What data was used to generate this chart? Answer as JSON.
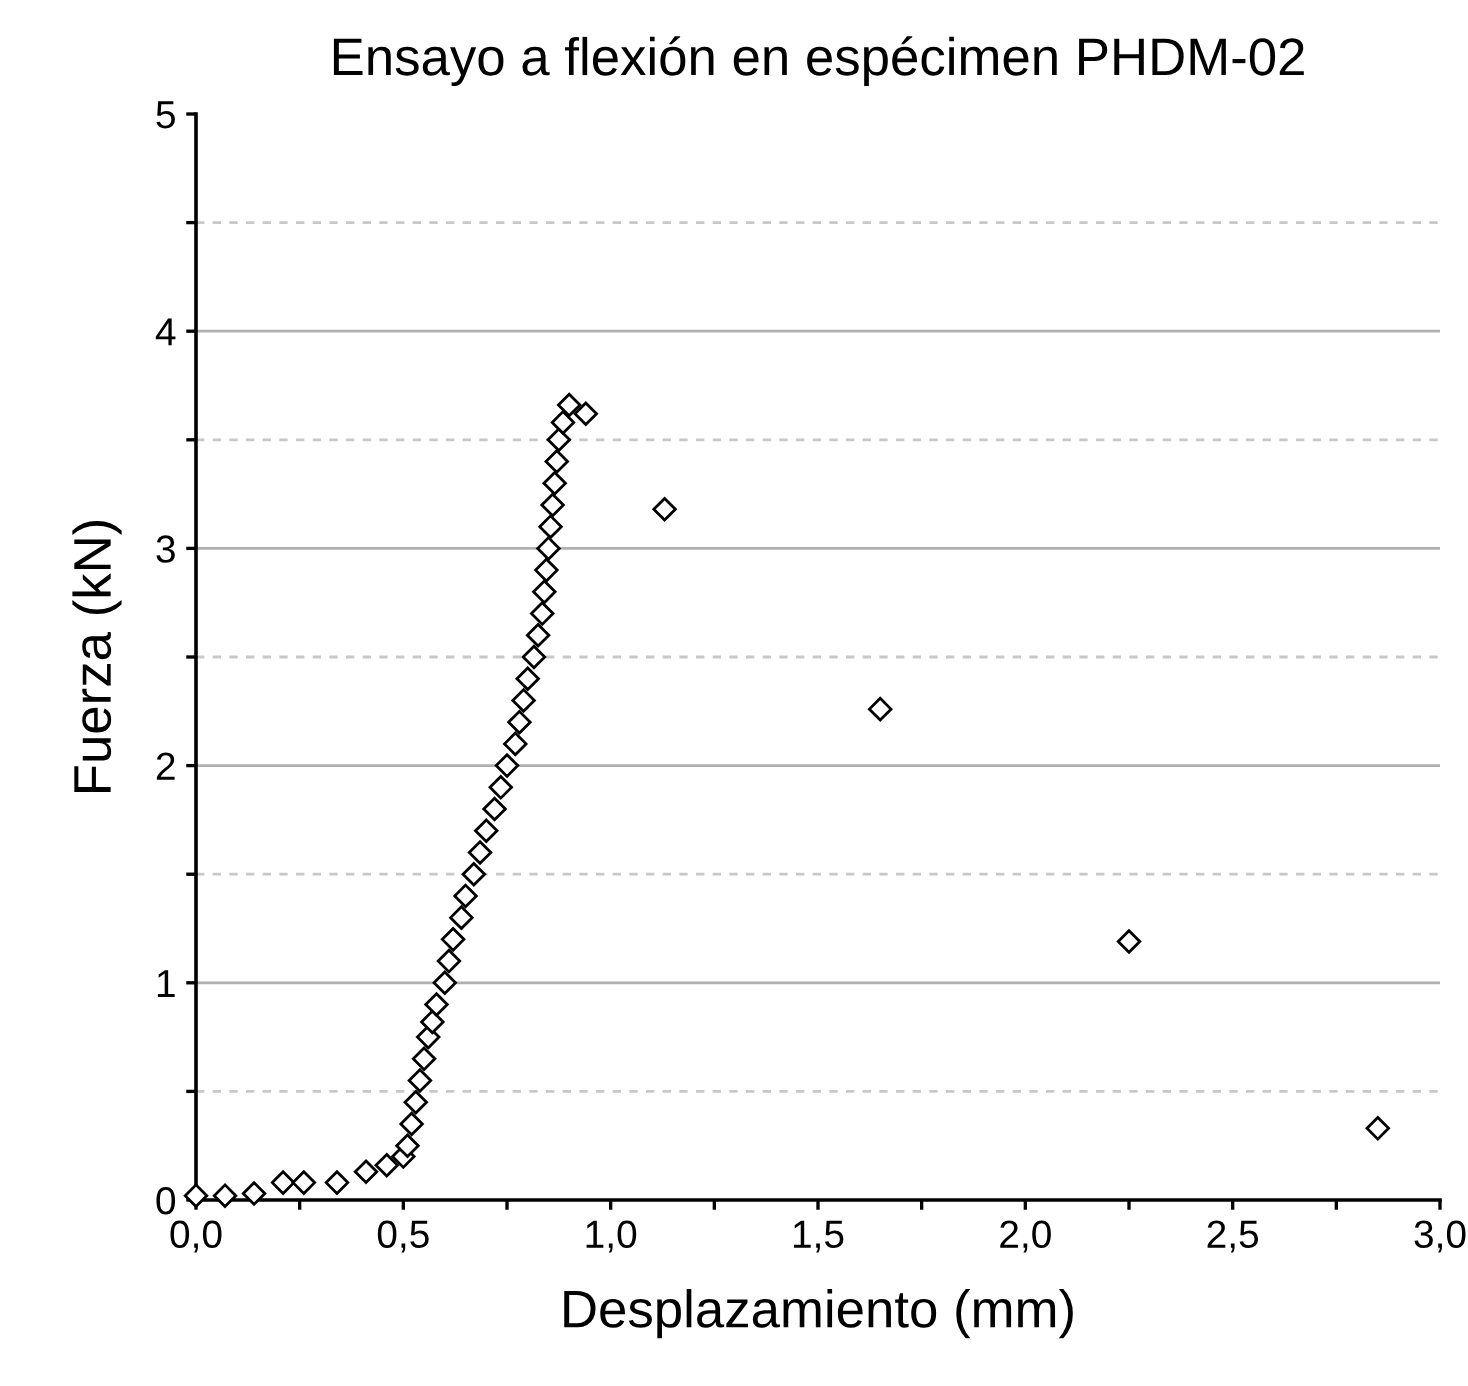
{
  "chart_data": {
    "type": "scatter",
    "title": "Ensayo a flexión en espécimen PHDM-02",
    "xlabel": "Desplazamiento (mm)",
    "ylabel": "Fuerza (kN)",
    "x": [
      0.0,
      0.07,
      0.14,
      0.21,
      0.26,
      0.34,
      0.41,
      0.46,
      0.5,
      0.51,
      0.52,
      0.53,
      0.54,
      0.55,
      0.56,
      0.57,
      0.58,
      0.6,
      0.61,
      0.62,
      0.64,
      0.65,
      0.67,
      0.685,
      0.7,
      0.72,
      0.735,
      0.75,
      0.77,
      0.78,
      0.79,
      0.8,
      0.815,
      0.825,
      0.835,
      0.84,
      0.845,
      0.85,
      0.855,
      0.86,
      0.865,
      0.87,
      0.875,
      0.885,
      0.9,
      0.94,
      1.13,
      1.65,
      2.25,
      2.85
    ],
    "values": [
      0.02,
      0.02,
      0.03,
      0.08,
      0.08,
      0.08,
      0.13,
      0.16,
      0.2,
      0.25,
      0.35,
      0.45,
      0.55,
      0.65,
      0.75,
      0.82,
      0.9,
      1.0,
      1.1,
      1.2,
      1.3,
      1.4,
      1.5,
      1.6,
      1.7,
      1.8,
      1.9,
      2.0,
      2.1,
      2.2,
      2.3,
      2.4,
      2.5,
      2.6,
      2.7,
      2.8,
      2.9,
      3.0,
      3.1,
      3.2,
      3.3,
      3.4,
      3.5,
      3.58,
      3.66,
      3.62,
      3.18,
      2.26,
      1.19,
      0.33
    ],
    "color": "#000000",
    "marker": "diamond",
    "xlim": [
      0,
      3.0
    ],
    "ylim": [
      0,
      5
    ],
    "xticks": [
      {
        "value": 0,
        "label": "0,0"
      },
      {
        "value": 0.25,
        "label": null
      },
      {
        "value": 0.5,
        "label": "0,5"
      },
      {
        "value": 0.75,
        "label": null
      },
      {
        "value": 1.0,
        "label": "1,0"
      },
      {
        "value": 1.25,
        "label": null
      },
      {
        "value": 1.5,
        "label": "1,5"
      },
      {
        "value": 1.75,
        "label": null
      },
      {
        "value": 2.0,
        "label": "2,0"
      },
      {
        "value": 2.25,
        "label": null
      },
      {
        "value": 2.5,
        "label": "2,5"
      },
      {
        "value": 2.75,
        "label": null
      },
      {
        "value": 3.0,
        "label": "3,0"
      }
    ],
    "yticks": [
      0,
      {
        "value": 0.5,
        "label": null
      },
      1,
      {
        "value": 1.5,
        "label": null
      },
      2,
      {
        "value": 2.5,
        "label": null
      },
      3,
      {
        "value": 3.5,
        "label": null
      },
      4,
      {
        "value": 4.5,
        "label": null
      },
      5
    ],
    "grid": "y"
  }
}
